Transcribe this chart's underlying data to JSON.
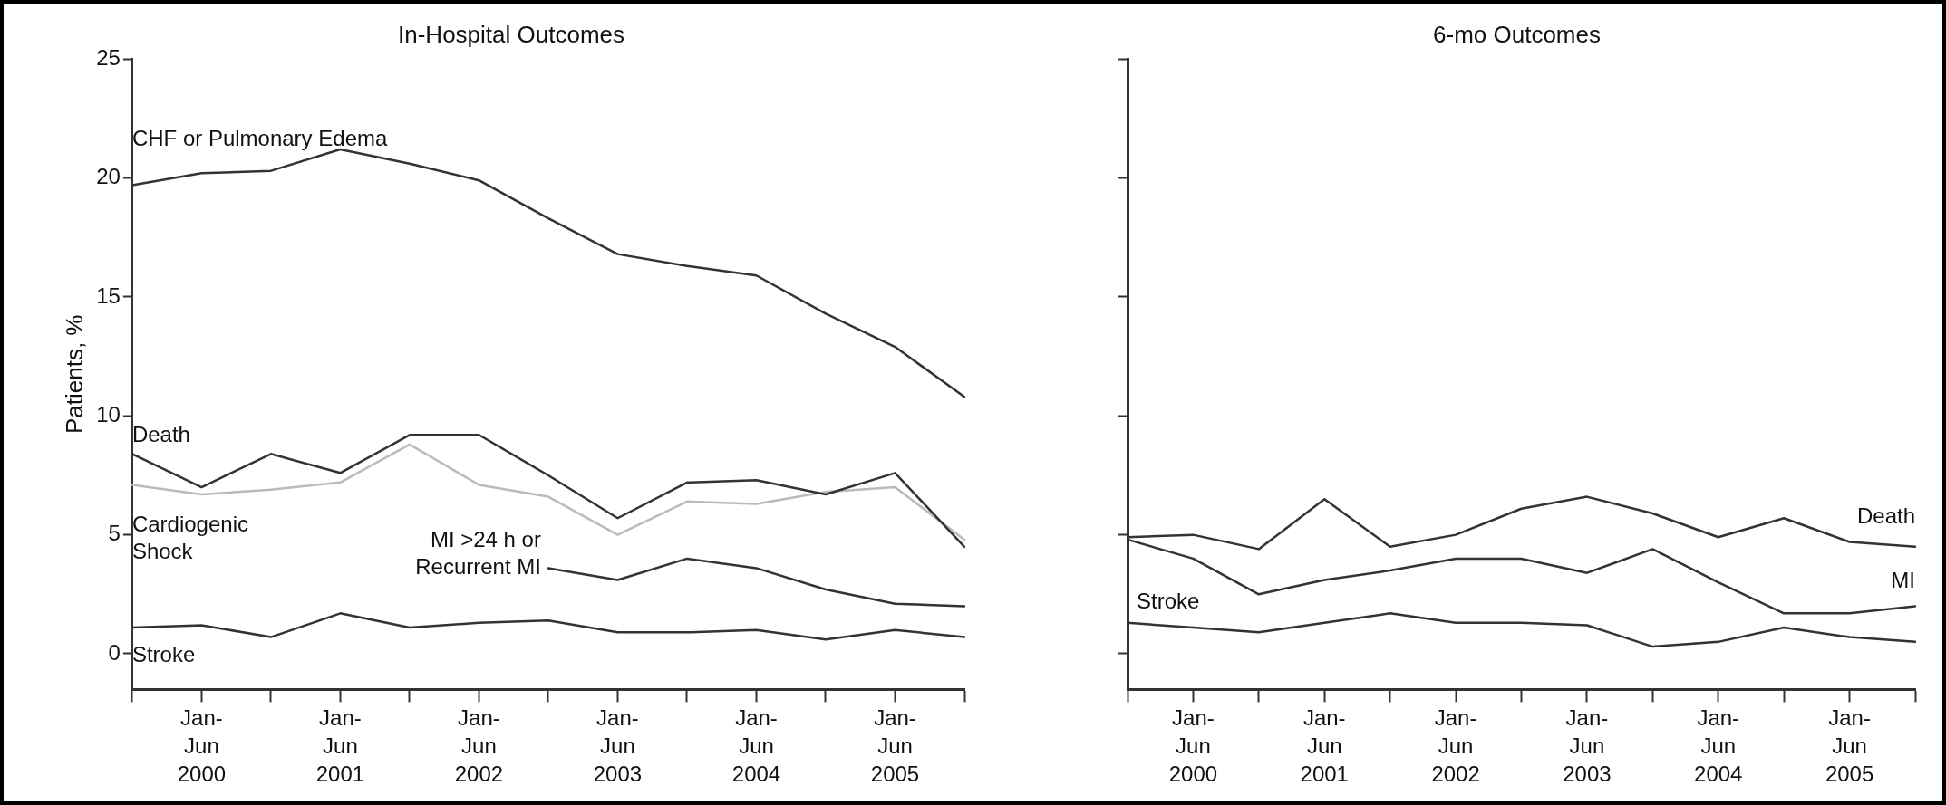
{
  "chart_data": [
    {
      "type": "line",
      "title": "In-Hospital Outcomes",
      "ylabel": "Patients, %",
      "categories": [
        null,
        "Jan-Jun 2000",
        null,
        "Jan-Jun 2001",
        null,
        "Jan-Jun 2002",
        null,
        "Jan-Jun 2003",
        null,
        "Jan-Jun 2004",
        null,
        "Jan-Jun 2005",
        null
      ],
      "series": [
        {
          "name": "CHF or Pulmonary Edema",
          "color": "#333333",
          "values": [
            19.7,
            20.2,
            20.3,
            21.2,
            20.6,
            19.9,
            18.3,
            16.8,
            16.3,
            15.9,
            14.3,
            12.9,
            10.8
          ]
        },
        {
          "name": "Death",
          "color": "#333333",
          "values": [
            8.4,
            7.0,
            8.4,
            7.6,
            9.2,
            9.2,
            7.5,
            5.7,
            7.2,
            7.3,
            6.7,
            7.6,
            4.5
          ]
        },
        {
          "name": "Cardiogenic Shock",
          "color": "#bbbbbb",
          "values": [
            7.1,
            6.7,
            6.9,
            7.2,
            8.8,
            7.1,
            6.6,
            5.0,
            6.4,
            6.3,
            6.8,
            7.0,
            4.8
          ]
        },
        {
          "name": "MI >24 h or Recurrent MI",
          "color": "#333333",
          "values": [
            null,
            null,
            null,
            null,
            null,
            null,
            3.6,
            3.1,
            4.0,
            3.6,
            2.7,
            2.1,
            2.0
          ]
        },
        {
          "name": "Stroke",
          "color": "#333333",
          "values": [
            1.1,
            1.2,
            0.7,
            1.7,
            1.1,
            1.3,
            1.4,
            0.9,
            0.9,
            1.0,
            0.6,
            1.0,
            0.7
          ]
        }
      ],
      "ylim": [
        -1.5,
        25
      ],
      "yticks": [
        0,
        5,
        10,
        15,
        20,
        25
      ],
      "grid": false,
      "legend": false,
      "marker": "none",
      "line_style": "solid"
    },
    {
      "type": "line",
      "title": "6-mo Outcomes",
      "categories": [
        null,
        "Jan-Jun 2000",
        null,
        "Jan-Jun 2001",
        null,
        "Jan-Jun 2002",
        null,
        "Jan-Jun 2003",
        null,
        "Jan-Jun 2004",
        null,
        "Jan-Jun 2005",
        null
      ],
      "series": [
        {
          "name": "Death",
          "color": "#333333",
          "values": [
            4.9,
            5.0,
            4.4,
            6.5,
            4.5,
            5.0,
            6.1,
            6.6,
            5.9,
            4.9,
            5.7,
            4.7,
            4.5
          ]
        },
        {
          "name": "MI",
          "color": "#333333",
          "values": [
            4.8,
            4.0,
            2.5,
            3.1,
            3.5,
            4.0,
            4.0,
            3.4,
            4.4,
            3.0,
            1.7,
            1.7,
            2.0
          ]
        },
        {
          "name": "Stroke",
          "color": "#333333",
          "values": [
            1.3,
            1.1,
            0.9,
            1.3,
            1.7,
            1.3,
            1.3,
            1.2,
            0.3,
            0.5,
            1.1,
            0.7,
            0.5
          ]
        }
      ],
      "ylim": [
        -1.5,
        25
      ],
      "yticks": [
        0,
        5,
        10,
        15,
        20,
        25
      ],
      "tick_labels": "x",
      "grid": false,
      "legend": false,
      "marker": "none",
      "line_style": "solid"
    }
  ]
}
